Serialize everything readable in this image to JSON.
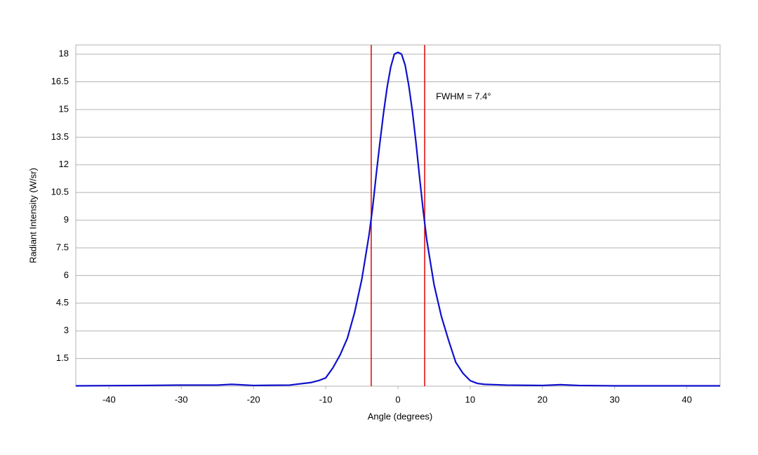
{
  "chart_data": {
    "type": "line",
    "x_label": "Angle (degrees)",
    "y_label": "Radiant Intensity (W/sr)",
    "annotation": "FWHM = 7.4°",
    "vlines": [
      -3.7,
      3.7
    ],
    "vline_color": "#dd0000",
    "xlim": [
      -44.6,
      44.6
    ],
    "ylim": [
      0,
      18.5
    ],
    "xticks": [
      -40,
      -30,
      -20,
      -10,
      0,
      10,
      20,
      30,
      40
    ],
    "yticks": [
      1.5,
      3,
      4.5,
      6,
      7.5,
      9,
      10.5,
      12,
      13.5,
      15,
      16.5,
      18
    ],
    "grid": true,
    "x": [
      -44.6,
      -40,
      -35,
      -30,
      -25,
      -23,
      -20,
      -15,
      -12,
      -11,
      -10,
      -9,
      -8,
      -7,
      -6,
      -5,
      -4,
      -3.5,
      -3,
      -2.5,
      -2,
      -1.5,
      -1,
      -0.5,
      0,
      0.5,
      1,
      1.5,
      2,
      2.5,
      3,
      3.5,
      4,
      5,
      6,
      7,
      8,
      9,
      10,
      11,
      12,
      15,
      20,
      22.5,
      25,
      30,
      35,
      40,
      44.6
    ],
    "series": [
      {
        "name": "Radiant Intensity",
        "color": "#1010cc",
        "values": [
          0.02,
          0.03,
          0.04,
          0.06,
          0.06,
          0.1,
          0.04,
          0.06,
          0.2,
          0.3,
          0.45,
          1.0,
          1.7,
          2.6,
          4.0,
          5.8,
          8.2,
          9.7,
          11.5,
          13.2,
          14.8,
          16.2,
          17.3,
          18.0,
          18.1,
          18.0,
          17.4,
          16.3,
          14.9,
          13.2,
          11.3,
          9.5,
          7.9,
          5.5,
          3.8,
          2.5,
          1.3,
          0.7,
          0.3,
          0.15,
          0.1,
          0.06,
          0.04,
          0.08,
          0.04,
          0.02,
          0.02,
          0.02,
          0.02
        ]
      }
    ]
  }
}
